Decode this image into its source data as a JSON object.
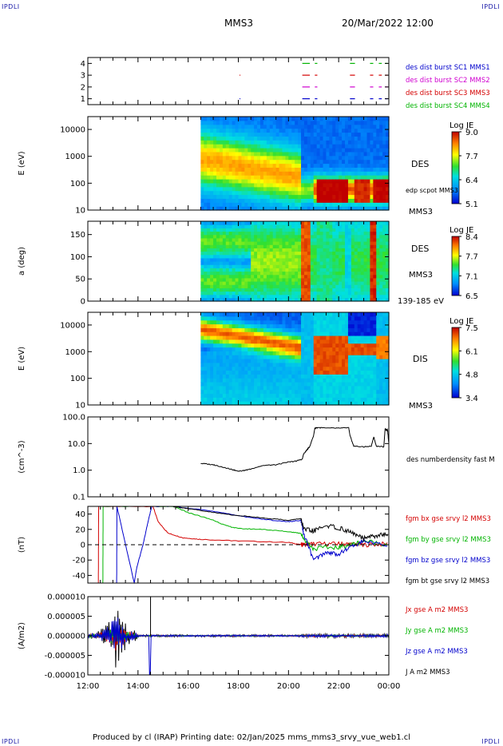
{
  "header": {
    "corner_tl": "IPDLI",
    "corner_tr": "IPDLI",
    "corner_bl": "IPDLI",
    "corner_br": "IPDLI",
    "spacecraft": "MMS3",
    "date": "20/Mar/2022 12:00"
  },
  "footer": {
    "text": "Produced by cl (IRAP)   Printing date: 02/Jan/2025   mms_mms3_srvy_vue_web1.cl"
  },
  "colors": {
    "blue": "#0000cc",
    "red": "#d40000",
    "green": "#00b400",
    "magenta": "#d000d0",
    "black": "#000000"
  },
  "chart_data": [
    {
      "type": "scatter",
      "id": "burst",
      "ylabel": "",
      "ylim": [
        0.5,
        4.5
      ],
      "yticks": [
        "1",
        "2",
        "3",
        "4"
      ],
      "labels": [
        {
          "text": "des dist burst SC1 MMS1",
          "color": "#0000cc"
        },
        {
          "text": "des dist burst SC2 MMS2",
          "color": "#d000d0"
        },
        {
          "text": "des dist burst SC3 MMS3",
          "color": "#d40000"
        },
        {
          "text": "des dist burst SC4 MMS4",
          "color": "#00b400"
        }
      ],
      "series": [
        {
          "level": 1,
          "color": "#0000cc",
          "intervals": [
            [
              18.05,
              18.07
            ],
            [
              20.55,
              20.85
            ],
            [
              21.05,
              21.15
            ],
            [
              22.45,
              22.65
            ],
            [
              23.25,
              23.38
            ],
            [
              23.6,
              23.72
            ],
            [
              23.85,
              23.95
            ]
          ]
        },
        {
          "level": 2,
          "color": "#d000d0",
          "intervals": [
            [
              20.55,
              20.85
            ],
            [
              21.05,
              21.15
            ],
            [
              22.45,
              22.65
            ],
            [
              23.25,
              23.38
            ],
            [
              23.6,
              23.72
            ],
            [
              23.85,
              23.95
            ]
          ]
        },
        {
          "level": 3,
          "color": "#d40000",
          "intervals": [
            [
              18.05,
              18.07
            ],
            [
              20.55,
              20.85
            ],
            [
              21.05,
              21.15
            ],
            [
              22.45,
              22.65
            ],
            [
              23.25,
              23.38
            ],
            [
              23.6,
              23.72
            ],
            [
              23.85,
              23.95
            ]
          ]
        },
        {
          "level": 4,
          "color": "#00b400",
          "intervals": [
            [
              20.55,
              20.85
            ],
            [
              21.05,
              21.15
            ],
            [
              22.45,
              22.65
            ],
            [
              23.25,
              23.38
            ],
            [
              23.6,
              23.72
            ],
            [
              23.85,
              23.95
            ]
          ]
        }
      ]
    },
    {
      "type": "heatmap",
      "id": "des_energy",
      "ylabel": "E (eV)",
      "yscale": "log",
      "ylim": [
        10,
        30000
      ],
      "yticks": [
        "10",
        "100",
        "1000",
        "10000"
      ],
      "labels": [
        "DES",
        "edp scpot MMS3",
        "MMS3"
      ],
      "colorbar": {
        "title": "Log JE",
        "ticks": [
          "9.0",
          "7.7",
          "6.4",
          "5.1"
        ]
      },
      "data_start": 16.5
    },
    {
      "type": "heatmap",
      "id": "des_pitch",
      "ylabel": "a (deg)",
      "ylim": [
        0,
        180
      ],
      "yticks": [
        "0",
        "50",
        "100",
        "150"
      ],
      "labels": [
        "DES",
        "MMS3",
        "139-185 eV"
      ],
      "colorbar": {
        "title": "Log JE",
        "ticks": [
          "8.4",
          "7.7",
          "7.1",
          "6.5"
        ]
      },
      "data_start": 16.5
    },
    {
      "type": "heatmap",
      "id": "dis_energy",
      "ylabel": "E (eV)",
      "yscale": "log",
      "ylim": [
        10,
        30000
      ],
      "yticks": [
        "10",
        "100",
        "1000",
        "10000"
      ],
      "labels": [
        "DIS",
        "MMS3"
      ],
      "colorbar": {
        "title": "Log JE",
        "ticks": [
          "7.5",
          "6.1",
          "4.8",
          "3.4"
        ]
      },
      "data_start": 16.5
    },
    {
      "type": "line",
      "id": "density",
      "ylabel": "(cm^-3)",
      "yscale": "log",
      "ylim": [
        0.1,
        100
      ],
      "yticks": [
        "0.1",
        "1.0",
        "10.0",
        "100.0"
      ],
      "labels": [
        "des numberdensity fast M"
      ],
      "series": [
        {
          "name": "des numberdensity fast M",
          "color": "#000000",
          "x": [
            16.5,
            17.0,
            17.4,
            17.7,
            18.0,
            18.3,
            18.6,
            19.0,
            19.5,
            20.0,
            20.3,
            20.55,
            20.6,
            20.75,
            20.85,
            21.0,
            21.05,
            21.15,
            21.5,
            22.0,
            22.4,
            22.45,
            22.6,
            23.0,
            23.3,
            23.4,
            23.5,
            23.8,
            23.85,
            23.95,
            24.0
          ],
          "y": [
            1.8,
            1.6,
            1.3,
            1.1,
            0.9,
            1.0,
            1.2,
            1.5,
            1.6,
            2.0,
            2.2,
            2.6,
            4.0,
            6.0,
            8.0,
            20,
            38,
            40,
            38,
            38,
            39,
            20,
            8.0,
            7.5,
            8.0,
            18,
            8.0,
            7.5,
            35,
            32,
            10
          ]
        }
      ]
    },
    {
      "type": "line",
      "id": "bfield",
      "ylabel": "(nT)",
      "ylim": [
        -50,
        50
      ],
      "yticks": [
        "-40",
        "-20",
        "0",
        "20",
        "40"
      ],
      "labels": [
        {
          "text": "fgm bx gse srvy l2 MMS3",
          "color": "#d40000"
        },
        {
          "text": "fgm by gse srvy l2 MMS3",
          "color": "#00b400"
        },
        {
          "text": "fgm bz gse srvy l2 MMS3",
          "color": "#0000cc"
        },
        {
          "text": "fgm bt gse srvy l2 MMS3",
          "color": "#000000"
        }
      ],
      "series": [
        {
          "name": "bx",
          "color": "#d40000",
          "x": [
            12.42,
            12.43,
            14.6,
            14.8,
            15.2,
            15.8,
            16.5,
            18.0,
            20.0,
            20.5,
            20.6,
            21.0,
            22.0,
            22.5,
            23.0,
            24.0
          ],
          "y": [
            -50,
            50,
            50,
            30,
            15,
            9,
            7,
            5,
            3,
            0,
            0,
            1,
            1,
            1,
            0,
            1
          ]
        },
        {
          "name": "by",
          "color": "#00b400",
          "x": [
            12.6,
            12.61,
            15.4,
            16.0,
            17.0,
            17.5,
            18.0,
            19.0,
            20.0,
            20.5,
            20.6,
            21.0,
            22.0,
            22.5,
            23.0,
            24.0
          ],
          "y": [
            -50,
            50,
            50,
            42,
            32,
            25,
            21,
            20,
            17,
            15,
            8,
            -5,
            -3,
            0,
            5,
            0
          ]
        },
        {
          "name": "bz",
          "color": "#0000cc",
          "x": [
            13.15,
            13.16,
            13.85,
            13.95,
            14.2,
            14.4,
            14.55,
            15.4,
            16.5,
            18.0,
            19.0,
            20.0,
            20.5,
            20.6,
            21.0,
            21.5,
            22.0,
            22.5,
            23.0,
            24.0
          ],
          "y": [
            -50,
            50,
            -50,
            -30,
            0,
            30,
            50,
            50,
            46,
            38,
            33,
            30,
            32,
            15,
            -20,
            -10,
            -12,
            -3,
            5,
            -3
          ]
        },
        {
          "name": "bt",
          "color": "#000000",
          "x": [
            15.4,
            16.0,
            17.0,
            18.0,
            19.0,
            20.0,
            20.5,
            20.6,
            21.0,
            21.5,
            22.0,
            22.5,
            23.0,
            23.5,
            24.0
          ],
          "y": [
            50,
            47,
            42,
            38,
            35,
            32,
            34,
            20,
            18,
            25,
            22,
            16,
            8,
            12,
            14
          ]
        }
      ]
    },
    {
      "type": "line",
      "id": "current",
      "ylabel": "(A/m2)",
      "ylim": [
        -0.0001,
        0.0001
      ],
      "yticks": [
        "-0.000010",
        "-0.000005",
        "0.000000",
        "0.000005",
        "0.000010"
      ],
      "labels": [
        {
          "text": "Jx gse A m2 MMS3",
          "color": "#d40000"
        },
        {
          "text": "Jy gse A m2 MMS3",
          "color": "#00b400"
        },
        {
          "text": "Jz gse A m2 MMS3",
          "color": "#0000cc"
        },
        {
          "text": "J A m2 MMS3",
          "color": "#000000"
        }
      ],
      "xticks": [
        "12:00",
        "14:00",
        "16:00",
        "18:00",
        "20:00",
        "22:00",
        "00:00"
      ],
      "xlim": [
        12,
        24
      ]
    }
  ]
}
